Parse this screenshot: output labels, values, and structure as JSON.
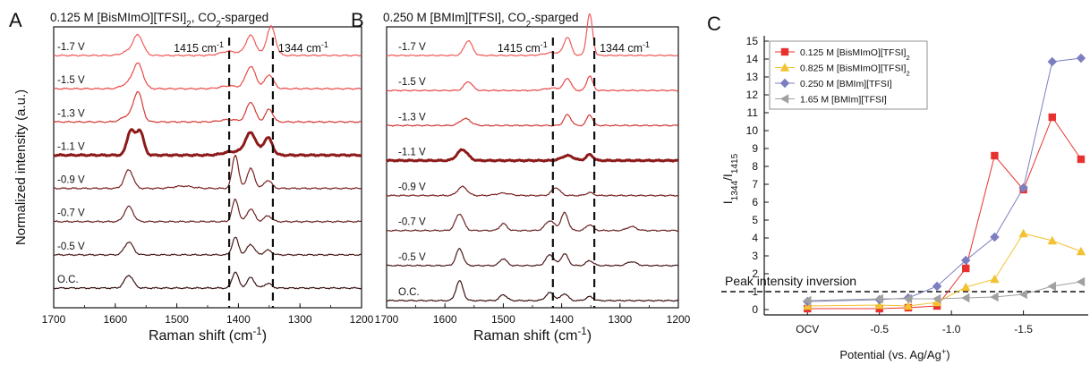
{
  "chart_data": [
    {
      "type": "line",
      "panel_letter": "A",
      "title": "0.125 M [BisMImO][TFSI]",
      "title_sub": "2",
      "title_tail": ", CO",
      "title_sub2": "2",
      "title_end": "-sparged",
      "xlabel": "Raman shift (cm",
      "xlabel_sup": "-1",
      "xlabel_end": ")",
      "ylabel": "Normalized intensity (a.u.)",
      "xlim": [
        1700,
        1200
      ],
      "xticks": [
        "1700",
        "1600",
        "1500",
        "1400",
        "1300",
        "1200"
      ],
      "reference_lines": [
        {
          "x": 1415,
          "label": "1415 cm",
          "sup": "-1"
        },
        {
          "x": 1344,
          "label": "1344 cm",
          "sup": "-1"
        }
      ],
      "series": [
        {
          "name": "-1.7 V",
          "color": "#f05a5a",
          "baseline": 0.0,
          "bold": false,
          "peaks": [
            [
              1563,
              0.85,
              8
            ],
            [
              1580,
              0.15,
              10
            ],
            [
              1380,
              0.85,
              8
            ],
            [
              1347,
              1.25,
              7
            ],
            [
              1415,
              0.18,
              14
            ]
          ]
        },
        {
          "name": "-1.5 V",
          "color": "#e94a48",
          "baseline": 0.0,
          "bold": false,
          "peaks": [
            [
              1563,
              1.05,
              8
            ],
            [
              1580,
              0.2,
              10
            ],
            [
              1380,
              0.95,
              8
            ],
            [
              1350,
              0.6,
              7
            ],
            [
              1415,
              0.12,
              14
            ]
          ]
        },
        {
          "name": "-1.3 V",
          "color": "#d23a36",
          "baseline": 0.0,
          "bold": false,
          "peaks": [
            [
              1563,
              1.25,
              7
            ],
            [
              1580,
              0.25,
              10
            ],
            [
              1380,
              0.85,
              7
            ],
            [
              1350,
              0.55,
              6
            ],
            [
              1415,
              0.1,
              14
            ]
          ]
        },
        {
          "name": "-1.1 V",
          "color": "#8d1a1a",
          "baseline": 0.0,
          "bold": true,
          "peaks": [
            [
              1575,
              1.05,
              6
            ],
            [
              1560,
              1.05,
              6
            ],
            [
              1380,
              0.95,
              9
            ],
            [
              1352,
              0.75,
              7
            ],
            [
              1410,
              0.15,
              14
            ]
          ]
        },
        {
          "name": "-0.9 V",
          "color": "#7a2020",
          "baseline": 0.0,
          "bold": false,
          "peaks": [
            [
              1578,
              0.8,
              7
            ],
            [
              1405,
              1.45,
              5
            ],
            [
              1380,
              0.85,
              6
            ],
            [
              1352,
              0.35,
              6
            ],
            [
              1490,
              0.1,
              15
            ]
          ]
        },
        {
          "name": "-0.7 V",
          "color": "#6b2222",
          "baseline": 0.0,
          "bold": false,
          "peaks": [
            [
              1578,
              0.65,
              7
            ],
            [
              1405,
              0.95,
              5
            ],
            [
              1380,
              0.55,
              6
            ],
            [
              1352,
              0.25,
              6
            ]
          ]
        },
        {
          "name": "-0.5 V",
          "color": "#4e1b1b",
          "baseline": 0.0,
          "bold": false,
          "peaks": [
            [
              1578,
              0.55,
              7
            ],
            [
              1405,
              0.75,
              5
            ],
            [
              1380,
              0.45,
              6
            ],
            [
              1352,
              0.2,
              6
            ]
          ]
        },
        {
          "name": "O.C.",
          "color": "#3a1212",
          "baseline": 0.0,
          "bold": false,
          "peaks": [
            [
              1578,
              0.55,
              7
            ],
            [
              1405,
              0.7,
              5
            ],
            [
              1380,
              0.45,
              6
            ],
            [
              1352,
              0.2,
              6
            ]
          ]
        }
      ]
    },
    {
      "type": "line",
      "panel_letter": "B",
      "title": "0.250 M [BMIm][TFSI], CO",
      "title_sub": "2",
      "title_end": "-sparged",
      "xlabel": "Raman shift (cm",
      "xlabel_sup": "-1",
      "xlabel_end": ")",
      "xlim": [
        1700,
        1200
      ],
      "xticks": [
        "1700",
        "1600",
        "1500",
        "1400",
        "1300",
        "1200"
      ],
      "reference_lines": [
        {
          "x": 1415,
          "label": "1415 cm",
          "sup": "-1"
        },
        {
          "x": 1344,
          "label": "1344 cm",
          "sup": "-1"
        }
      ],
      "series": [
        {
          "name": "-1.7 V",
          "color": "#f05a5a",
          "baseline": 0.0,
          "bold": false,
          "peaks": [
            [
              1560,
              0.75,
              7
            ],
            [
              1390,
              0.9,
              6
            ],
            [
              1352,
              2.1,
              5
            ],
            [
              1415,
              0.15,
              14
            ]
          ]
        },
        {
          "name": "-1.5 V",
          "color": "#e94a48",
          "baseline": 0.0,
          "bold": false,
          "peaks": [
            [
              1560,
              0.45,
              7
            ],
            [
              1390,
              0.6,
              6
            ],
            [
              1352,
              0.75,
              5
            ],
            [
              1415,
              0.12,
              14
            ]
          ]
        },
        {
          "name": "-1.3 V",
          "color": "#d23a36",
          "baseline": 0.0,
          "bold": false,
          "peaks": [
            [
              1565,
              0.35,
              9
            ],
            [
              1390,
              0.55,
              6
            ],
            [
              1352,
              0.55,
              5
            ]
          ]
        },
        {
          "name": "-1.1 V",
          "color": "#8d1a1a",
          "baseline": 0.0,
          "bold": true,
          "peaks": [
            [
              1570,
              0.55,
              9
            ],
            [
              1390,
              0.25,
              10
            ],
            [
              1352,
              0.3,
              6
            ]
          ]
        },
        {
          "name": "-0.9 V",
          "color": "#7a2020",
          "baseline": 0.0,
          "bold": false,
          "peaks": [
            [
              1570,
              0.45,
              8
            ],
            [
              1410,
              0.4,
              7
            ],
            [
              1352,
              0.15,
              6
            ],
            [
              1500,
              0.12,
              12
            ]
          ]
        },
        {
          "name": "-0.7 V",
          "color": "#6b2222",
          "baseline": 0.0,
          "bold": false,
          "peaks": [
            [
              1575,
              0.85,
              7
            ],
            [
              1500,
              0.35,
              6
            ],
            [
              1420,
              0.5,
              8
            ],
            [
              1395,
              0.9,
              6
            ],
            [
              1352,
              0.3,
              6
            ],
            [
              1280,
              0.2,
              8
            ]
          ]
        },
        {
          "name": "-0.5 V",
          "color": "#4e1b1b",
          "baseline": 0.0,
          "bold": false,
          "peaks": [
            [
              1575,
              0.85,
              6
            ],
            [
              1500,
              0.35,
              6
            ],
            [
              1420,
              0.55,
              7
            ],
            [
              1395,
              0.6,
              6
            ],
            [
              1352,
              0.25,
              6
            ],
            [
              1280,
              0.2,
              8
            ]
          ]
        },
        {
          "name": "O.C.",
          "color": "#3a1212",
          "baseline": 0.0,
          "bold": false,
          "peaks": [
            [
              1575,
              1.0,
              6
            ],
            [
              1500,
              0.3,
              6
            ],
            [
              1420,
              0.4,
              7
            ],
            [
              1395,
              0.35,
              6
            ],
            [
              1352,
              0.2,
              6
            ]
          ]
        }
      ]
    },
    {
      "type": "scatter",
      "panel_letter": "C",
      "xlabel": "Potential (vs. Ag/Ag",
      "xlabel_sup": "+",
      "xlabel_end": ")",
      "ylabel_main": "I",
      "ylabel_sub1": "1344",
      "ylabel_mid": "/I",
      "ylabel_sub2": "1415",
      "xlim": [
        0.3,
        -1.95
      ],
      "ylim": [
        -0.3,
        15.3
      ],
      "xticks": [
        {
          "value": 0.0,
          "label": "OCV"
        },
        {
          "value": -0.5,
          "label": "-0.5"
        },
        {
          "value": -1.0,
          "label": "-1.0"
        },
        {
          "value": -1.5,
          "label": "-1.5"
        }
      ],
      "yticks": [
        0,
        1,
        2,
        3,
        4,
        5,
        6,
        7,
        8,
        9,
        10,
        11,
        12,
        13,
        14,
        15
      ],
      "reference_line": {
        "y": 1,
        "label": "Peak intensity inversion"
      },
      "series": [
        {
          "name": "0.125 M [BisMImO][TFSI]",
          "name_sub": "2",
          "color": "#e8312f",
          "marker": "square",
          "x": [
            0.0,
            -0.5,
            -0.7,
            -0.9,
            -1.1,
            -1.3,
            -1.5,
            -1.7,
            -1.9
          ],
          "y": [
            0.05,
            0.05,
            0.1,
            0.2,
            2.3,
            8.6,
            6.7,
            10.75,
            8.4
          ]
        },
        {
          "name": "0.825 M [BisMImO][TFSI]",
          "name_sub": "2",
          "color": "#f2c232",
          "marker": "triangle-up",
          "x": [
            0.0,
            -0.5,
            -0.7,
            -0.9,
            -1.1,
            -1.3,
            -1.5,
            -1.7,
            -1.9
          ],
          "y": [
            0.2,
            0.25,
            0.2,
            0.4,
            1.25,
            1.7,
            4.25,
            3.85,
            3.25
          ]
        },
        {
          "name": "0.250 M [BMIm][TFSI]",
          "color": "#7b7fc0",
          "marker": "diamond",
          "x": [
            0.0,
            -0.5,
            -0.7,
            -0.9,
            -1.1,
            -1.3,
            -1.5,
            -1.7,
            -1.9
          ],
          "y": [
            0.45,
            0.55,
            0.65,
            1.3,
            2.75,
            4.05,
            6.8,
            13.85,
            14.05
          ]
        },
        {
          "name": "1.65 M [BMIm][TFSI]",
          "color": "#a0a0a0",
          "marker": "triangle-left",
          "x": [
            0.0,
            -0.5,
            -0.7,
            -0.9,
            -1.1,
            -1.3,
            -1.5,
            -1.7,
            -1.9
          ],
          "y": [
            0.5,
            0.6,
            0.6,
            0.6,
            0.65,
            0.7,
            0.85,
            1.3,
            1.55
          ]
        }
      ]
    }
  ]
}
